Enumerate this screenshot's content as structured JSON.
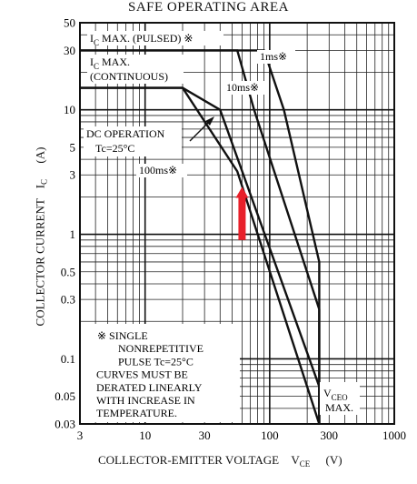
{
  "chart_data": {
    "type": "line",
    "title": "SAFE OPERATING AREA",
    "xlabel": {
      "text": "COLLECTOR-EMITTER VOLTAGE",
      "symbol": "V",
      "sub": "CE",
      "unit": "(V)"
    },
    "ylabel": {
      "text": "COLLECTOR CURRENT",
      "symbol": "I",
      "sub": "C",
      "unit": "(A)"
    },
    "x_scale": "log",
    "y_scale": "log",
    "xlim": [
      3,
      1000
    ],
    "ylim": [
      0.03,
      50
    ],
    "grid": true,
    "x_ticks": [
      {
        "value": 3,
        "label": "3"
      },
      {
        "value": 10,
        "label": "10"
      },
      {
        "value": 30,
        "label": "30"
      },
      {
        "value": 100,
        "label": "100"
      },
      {
        "value": 300,
        "label": "300"
      },
      {
        "value": 1000,
        "label": "1000"
      }
    ],
    "y_ticks": [
      {
        "value": 0.03,
        "label": "0.03"
      },
      {
        "value": 0.05,
        "label": "0.05"
      },
      {
        "value": 0.1,
        "label": "0.1"
      },
      {
        "value": 0.3,
        "label": "0.3"
      },
      {
        "value": 0.5,
        "label": "0.5"
      },
      {
        "value": 1,
        "label": "1"
      },
      {
        "value": 3,
        "label": "3"
      },
      {
        "value": 5,
        "label": "5"
      },
      {
        "value": 10,
        "label": "10"
      },
      {
        "value": 30,
        "label": "30"
      },
      {
        "value": 50,
        "label": "50"
      }
    ],
    "series": [
      {
        "name": "1ms※",
        "points": [
          [
            3,
            30
          ],
          [
            90,
            30
          ],
          [
            130,
            10
          ],
          [
            250,
            0.6
          ],
          [
            250,
            0.03
          ]
        ]
      },
      {
        "name": "10ms※",
        "points": [
          [
            3,
            30
          ],
          [
            55,
            30
          ],
          [
            75,
            10
          ],
          [
            250,
            0.25
          ],
          [
            250,
            0.03
          ]
        ]
      },
      {
        "name": "100ms※",
        "points": [
          [
            3,
            15
          ],
          [
            20,
            15
          ],
          [
            40,
            10
          ],
          [
            250,
            0.06
          ],
          [
            250,
            0.03
          ]
        ]
      },
      {
        "name": "DC OPERATION",
        "points": [
          [
            3,
            15
          ],
          [
            20,
            15
          ],
          [
            55,
            3.2
          ],
          [
            250,
            0.03
          ]
        ]
      }
    ],
    "annotations": {
      "pulsed": {
        "prefix": "I",
        "sub": "C",
        "text": " MAX. (PULSED) ※"
      },
      "continuous_l1": {
        "prefix": "I",
        "sub": "C",
        "text": " MAX."
      },
      "continuous_l2": "(CONTINUOUS)",
      "ms1": "1ms※",
      "ms10": "10ms※",
      "dc_l1": "DC OPERATION",
      "dc_l2": "Tc=25°C",
      "ms100": "100ms※",
      "vceo_prefix": "V",
      "vceo_sub": "CEO",
      "vceo_l2": "MAX.",
      "note_l1": "※  SINGLE",
      "note_l2": "NONREPETITIVE",
      "note_l3": "PULSE  Tc=25°C",
      "note_l4": "CURVES MUST BE",
      "note_l5": "DERATED LINEARLY",
      "note_l6": "WITH INCREASE IN",
      "note_l7": "TEMPERATURE."
    },
    "marker": {
      "x": 60,
      "y_from": 0.9,
      "y_to": 2.4,
      "color": "#e8202a"
    }
  }
}
